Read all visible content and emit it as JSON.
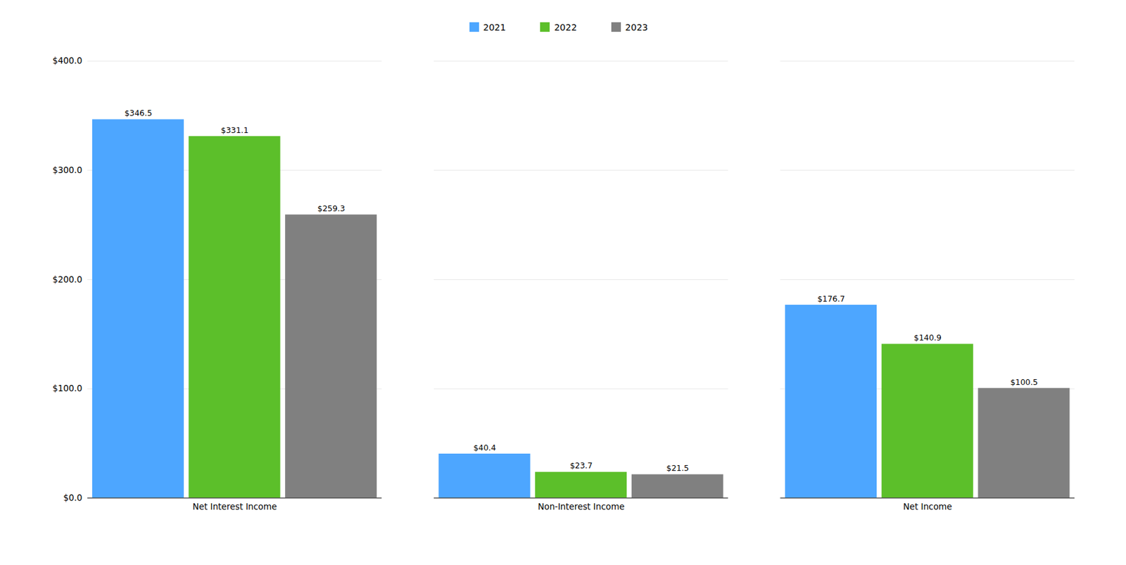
{
  "chart_data": {
    "type": "bar",
    "categories": [
      "Net Interest Income",
      "Non-Interest Income",
      "Net Income"
    ],
    "series": [
      {
        "name": "2021",
        "color": "#4DA6FF",
        "values": [
          346.5,
          40.4,
          176.7
        ],
        "value_labels": [
          "$346.5",
          "$40.4",
          "$176.7"
        ]
      },
      {
        "name": "2022",
        "color": "#5CBF2A",
        "values": [
          331.1,
          23.7,
          140.9
        ],
        "value_labels": [
          "$331.1",
          "$23.7",
          "$140.9"
        ]
      },
      {
        "name": "2023",
        "color": "#808080",
        "values": [
          259.3,
          21.5,
          100.5
        ],
        "value_labels": [
          "$259.3",
          "$21.5",
          "$100.5"
        ]
      }
    ],
    "ylim": [
      0,
      400
    ],
    "yticks": [
      {
        "value": 0,
        "label": "$0.0"
      },
      {
        "value": 100,
        "label": "$100.0"
      },
      {
        "value": 200,
        "label": "$200.0"
      },
      {
        "value": 300,
        "label": "$300.0"
      },
      {
        "value": 400,
        "label": "$400.0"
      }
    ],
    "grid": true,
    "legend": "top",
    "data_labels": true
  }
}
